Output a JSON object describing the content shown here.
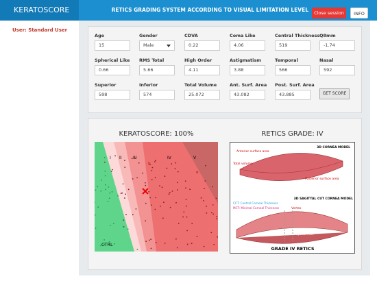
{
  "header": {
    "brand": "KERATOSCORE",
    "title": "RETICS GRADING SYSTEM ACCORDING TO VISUAL LIMITATION LEVEL",
    "close_button": "Close session",
    "info_button": "INFO"
  },
  "sidebar": {
    "user": "User: Standard User"
  },
  "form": {
    "fields": [
      {
        "label": "Age",
        "value": "15"
      },
      {
        "label": "Gender",
        "value": "Male"
      },
      {
        "label": "CDVA",
        "value": "0.22"
      },
      {
        "label": "Coma Like",
        "value": "4.06"
      },
      {
        "label": "Central Thickness",
        "value": "519"
      },
      {
        "label": "Q8mm",
        "value": "-1.74"
      },
      {
        "label": "Spherical Like",
        "value": "0.66"
      },
      {
        "label": "RMS Total",
        "value": "5.66"
      },
      {
        "label": "High Order",
        "value": "4.11"
      },
      {
        "label": "Astigmatism",
        "value": "3.88"
      },
      {
        "label": "Temporal",
        "value": "566"
      },
      {
        "label": "Nasal",
        "value": "592"
      },
      {
        "label": "Superior",
        "value": "598"
      },
      {
        "label": "Inferior",
        "value": "574"
      },
      {
        "label": "Total Volume",
        "value": "25.072"
      },
      {
        "label": "Ant. Surf. Area",
        "value": "43.082"
      },
      {
        "label": "Post. Surf. Area",
        "value": "43.885"
      }
    ],
    "button": "GET SCORE"
  },
  "results": {
    "score_title": "KERATOSCORE: 100%",
    "grade_title": "RETICS GRADE: IV",
    "zones": [
      "I",
      "II",
      "III",
      "IV",
      "V"
    ],
    "ctrl_label": "CTRL",
    "model": {
      "top_title": "3D CORNEA MODEL",
      "anterior": "Anterior surface area",
      "volume": "Total volume",
      "posterior": "Posterior surface area",
      "cut_title": "3D SAGITTAL CUT CORNEA MODEL",
      "cct": "CCT: Central Corneal Thickness",
      "mct": "MCT: Minimal Corneal Thickness",
      "vertex": "Vertex",
      "visual_axis": "Visual Axis",
      "optical_axis": "Optical Axis",
      "grade": "GRADE IV RETICS"
    }
  }
}
